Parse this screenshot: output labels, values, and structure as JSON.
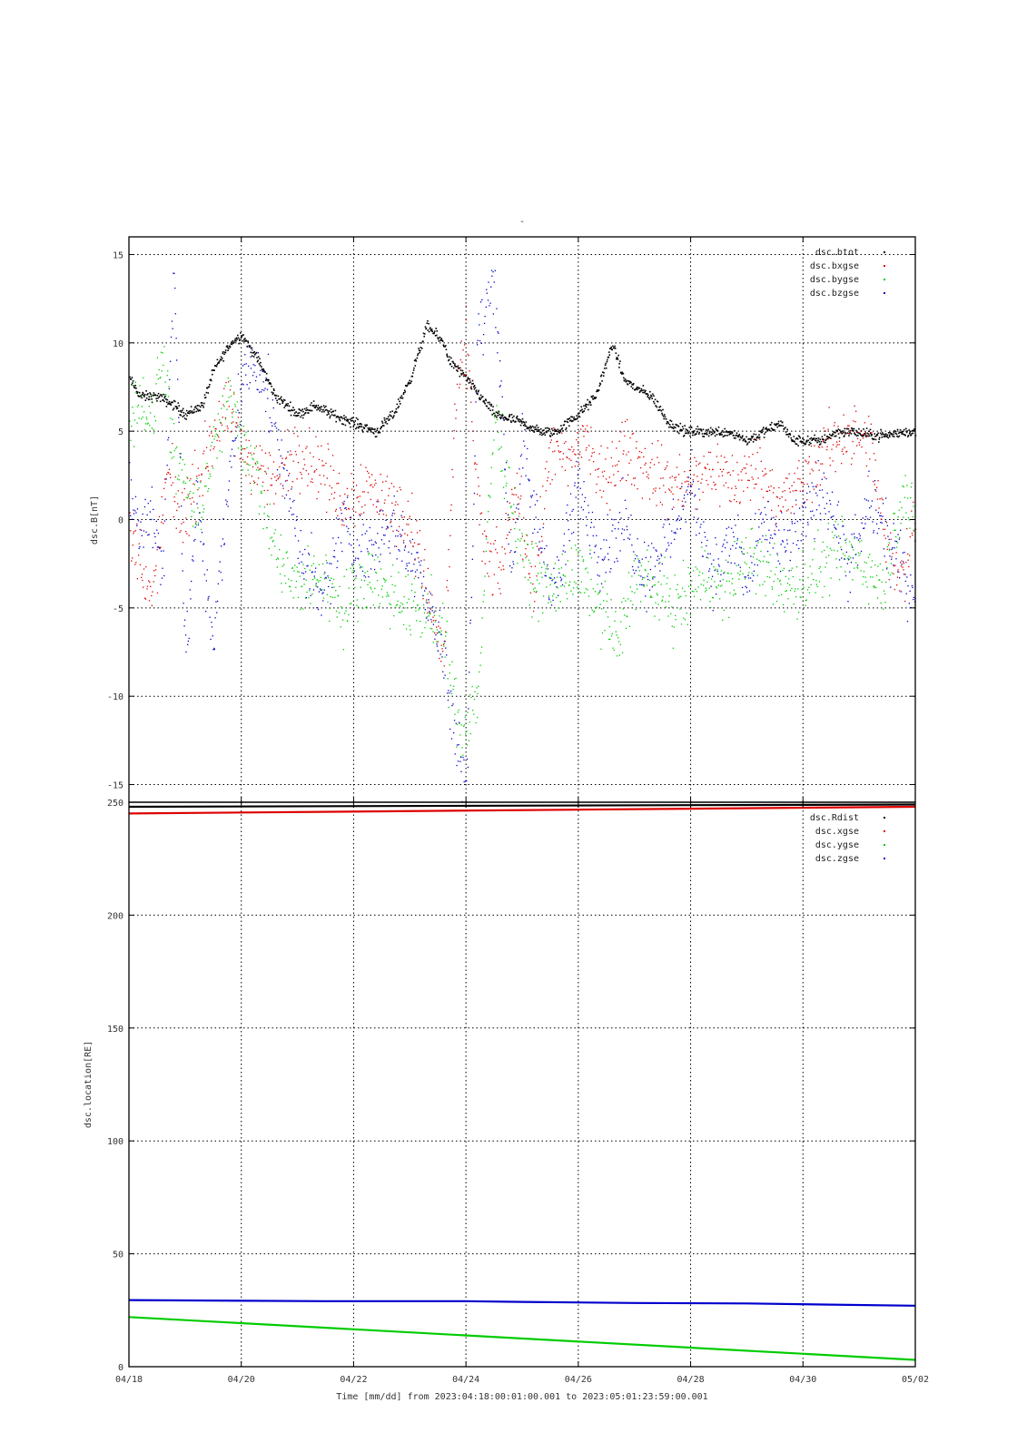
{
  "colors": {
    "black": "#000000",
    "red": "#dd0000",
    "green": "#00cc00",
    "blue": "#0000cc"
  },
  "x_axis": {
    "tick_labels": [
      "04/18",
      "04/20",
      "04/22",
      "04/24",
      "04/26",
      "04/28",
      "04/30",
      "05/02"
    ],
    "label": "Time [mm/dd]  from 2023:04:18:00:01:00.001  to  2023:05:01:23:59:00.001",
    "range_days": [
      0,
      14
    ]
  },
  "top_title": "-",
  "chart_data": [
    {
      "type": "scatter",
      "ylabel": "dsc.B[nT]",
      "ylim": [
        -16,
        16
      ],
      "yticks": [
        -15,
        -10,
        -5,
        0,
        5,
        10,
        15
      ],
      "grid": true,
      "legend_position": "top-right",
      "series": [
        {
          "name": "dsc.btot",
          "color": "#000000",
          "x": [
            0,
            0.2,
            0.5,
            0.8,
            1.0,
            1.3,
            1.5,
            1.8,
            2.0,
            2.3,
            2.6,
            3.0,
            3.3,
            3.6,
            4.0,
            4.4,
            4.7,
            5.0,
            5.3,
            5.6,
            5.7,
            6.0,
            6.5,
            7.0,
            7.3,
            7.6,
            7.8,
            8.0,
            8.3,
            8.6,
            8.8,
            9.0,
            9.3,
            9.6,
            9.9,
            10.2,
            10.5,
            10.7,
            11.0,
            11.3,
            11.6,
            11.8,
            12.0,
            12.3,
            12.6,
            12.9,
            13.2,
            13.5,
            13.8,
            14.0
          ],
          "y": [
            8,
            7,
            7,
            6.5,
            6,
            6.5,
            8.5,
            10,
            10.5,
            9,
            7,
            6,
            6.5,
            6,
            5.5,
            5,
            6,
            8,
            11,
            10,
            9,
            8,
            6,
            5.5,
            5,
            5,
            5.5,
            6,
            7,
            10,
            8,
            7.5,
            7,
            5.5,
            5,
            5,
            5,
            5,
            4.5,
            5,
            5.5,
            4.5,
            4.5,
            4.5,
            5,
            5,
            4.8,
            4.8,
            5,
            5
          ]
        },
        {
          "name": "dsc.bxgse",
          "color": "#dd0000",
          "x": [
            0,
            0.2,
            0.4,
            0.5,
            0.7,
            0.9,
            1.2,
            1.5,
            1.8,
            2.0,
            2.3,
            2.6,
            3.0,
            3.4,
            3.8,
            4.2,
            4.6,
            5.0,
            5.3,
            5.6,
            5.8,
            6.0,
            6.3,
            6.6,
            6.9,
            7.2,
            7.5,
            7.8,
            8.1,
            8.4,
            8.8,
            9.2,
            9.6,
            10.0,
            10.4,
            10.8,
            11.2,
            11.6,
            12.0,
            12.4,
            12.8,
            13.2,
            13.5,
            13.8,
            14.0
          ],
          "y": [
            -1,
            -2,
            -5,
            -2,
            3,
            0,
            2,
            5,
            6,
            4,
            3,
            2,
            4,
            3,
            1,
            2,
            1,
            0,
            -4,
            -8,
            6,
            10,
            -2,
            -3,
            2,
            -4,
            4,
            3,
            5,
            2,
            4,
            3,
            2,
            2,
            3,
            2,
            3,
            1,
            2,
            4,
            5,
            4,
            -2,
            -3,
            1
          ]
        },
        {
          "name": "dsc.bygse",
          "color": "#00cc00",
          "x": [
            0,
            0.2,
            0.4,
            0.6,
            0.8,
            1.0,
            1.2,
            1.5,
            1.8,
            2.0,
            2.3,
            2.6,
            3.0,
            3.4,
            3.8,
            4.2,
            4.6,
            5.0,
            5.3,
            5.6,
            5.9,
            6.2,
            6.5,
            6.8,
            7.1,
            7.5,
            7.9,
            8.3,
            8.7,
            9.0,
            9.4,
            9.8,
            10.2,
            10.6,
            11.0,
            11.4,
            11.8,
            12.2,
            12.6,
            13.0,
            13.4,
            13.8,
            14.0
          ],
          "y": [
            6,
            7,
            5,
            10,
            3,
            2,
            0,
            4,
            7,
            5,
            2,
            -2,
            -4,
            -3,
            -5,
            -3,
            -4,
            -5,
            -5,
            -7,
            -12,
            -10,
            6,
            1,
            -3,
            -4,
            -3,
            -4,
            -7,
            -3,
            -4,
            -5,
            -3,
            -4,
            -2,
            -3,
            -4,
            -3,
            -2,
            -2,
            -4,
            2,
            -1
          ]
        },
        {
          "name": "dsc.bzgse",
          "color": "#0000cc",
          "x": [
            0,
            0.2,
            0.4,
            0.6,
            0.8,
            1.0,
            1.2,
            1.5,
            1.8,
            2.0,
            2.3,
            2.6,
            3.0,
            3.4,
            3.8,
            4.2,
            4.6,
            5.0,
            5.3,
            5.6,
            5.8,
            6.0,
            6.2,
            6.5,
            6.8,
            7.0,
            7.3,
            7.6,
            8.0,
            8.4,
            8.8,
            9.2,
            9.6,
            10.0,
            10.4,
            10.8,
            11.0,
            11.3,
            11.6,
            12.0,
            12.4,
            12.8,
            13.2,
            13.6,
            14.0
          ],
          "y": [
            2,
            -1,
            1,
            -3,
            15,
            -8,
            1,
            -7,
            3,
            8,
            9,
            5,
            -1,
            -5,
            0,
            -2,
            0,
            -2,
            -4,
            -8,
            -12,
            -15,
            10,
            14,
            -3,
            4,
            -1,
            -4,
            2,
            -2,
            0,
            -3,
            -1,
            2,
            -3,
            -1,
            -4,
            0,
            -2,
            0,
            2,
            -3,
            1,
            -2,
            -4
          ]
        }
      ]
    },
    {
      "type": "line",
      "ylabel": "dsc.location[RE]",
      "ylim": [
        0,
        250
      ],
      "yticks": [
        0,
        50,
        100,
        150,
        200,
        250
      ],
      "grid": true,
      "legend_position": "top-right",
      "series": [
        {
          "name": "dsc.Rdist",
          "color": "#000000",
          "x": [
            0,
            14
          ],
          "y": [
            248,
            249
          ]
        },
        {
          "name": "dsc.xgse",
          "color": "#dd0000",
          "x": [
            0,
            14
          ],
          "y": [
            245,
            248
          ]
        },
        {
          "name": "dsc.ygse",
          "color": "#00cc00",
          "x": [
            0,
            14
          ],
          "y": [
            22,
            3
          ]
        },
        {
          "name": "dsc.zgse",
          "color": "#0000cc",
          "x": [
            0,
            3.5,
            6,
            7,
            9,
            11,
            12.5,
            14
          ],
          "y": [
            29.5,
            29,
            29,
            28.7,
            28.2,
            28,
            27.5,
            27
          ]
        }
      ]
    }
  ]
}
